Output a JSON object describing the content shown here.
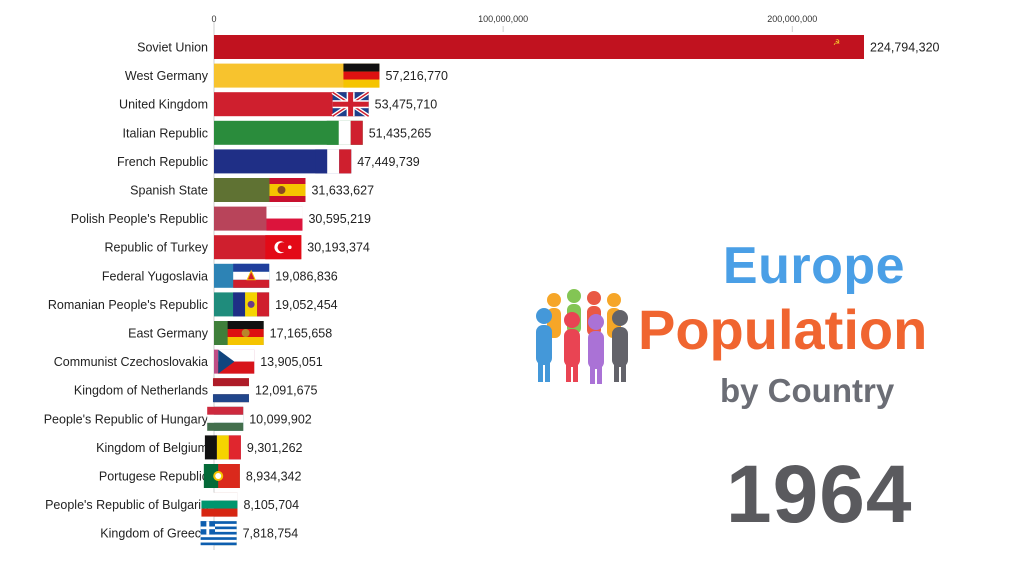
{
  "title": {
    "line1": "Europe",
    "line2": "Population",
    "line3": "by Country"
  },
  "year": "1964",
  "chart_data": {
    "type": "bar",
    "orientation": "horizontal",
    "xlim": [
      0,
      235000000
    ],
    "ticks": [
      {
        "value": 0,
        "label": "0"
      },
      {
        "value": 100000000,
        "label": "100,000,000"
      },
      {
        "value": 200000000,
        "label": "200,000,000"
      }
    ],
    "categories": [
      "Soviet Union",
      "West Germany",
      "United Kingdom",
      "Italian Republic",
      "French Republic",
      "Spanish State",
      "Polish People's Republic",
      "Republic of Turkey",
      "Federal Yugoslavia",
      "Romanian People's Republic",
      "East Germany",
      "Communist Czechoslovakia",
      "Kingdom of Netherlands",
      "People's Republic of Hungary",
      "Kingdom of Belgium",
      "Portugese Republic",
      "People's Republic of Bulgaria",
      "Kingdom of Greece"
    ],
    "values": [
      224794320,
      57216770,
      53475710,
      51435265,
      47449739,
      31633627,
      30595219,
      30193374,
      19086836,
      19052454,
      17165658,
      13905051,
      12091675,
      10099902,
      9301262,
      8934342,
      8105704,
      7818754
    ],
    "value_labels": [
      "224,794,320",
      "57,216,770",
      "53,475,710",
      "51,435,265",
      "47,449,739",
      "31,633,627",
      "30,595,219",
      "30,193,374",
      "19,086,836",
      "19,052,454",
      "17,165,658",
      "13,905,051",
      "12,091,675",
      "10,099,902",
      "9,301,262",
      "8,934,342",
      "8,105,704",
      "7,818,754"
    ],
    "colors": [
      "#c1121f",
      "#f7c32e",
      "#cf1f2e",
      "#2a8c3c",
      "#1f2f86",
      "#5f7233",
      "#b8445a",
      "#cf1f2e",
      "#2d83b5",
      "#1f8c7c",
      "#3f7f3a",
      "#c04d86",
      "#b86446",
      "#2d7f8c",
      "#7a4fb0",
      "#6e6f2e",
      "#a8524a",
      "#5e8a3a"
    ],
    "flags": [
      "su",
      "de",
      "gb",
      "it",
      "fr",
      "es",
      "pl",
      "tr",
      "yu",
      "ro",
      "dd",
      "cs",
      "nl",
      "hu",
      "be",
      "pt",
      "bg",
      "gr"
    ]
  }
}
